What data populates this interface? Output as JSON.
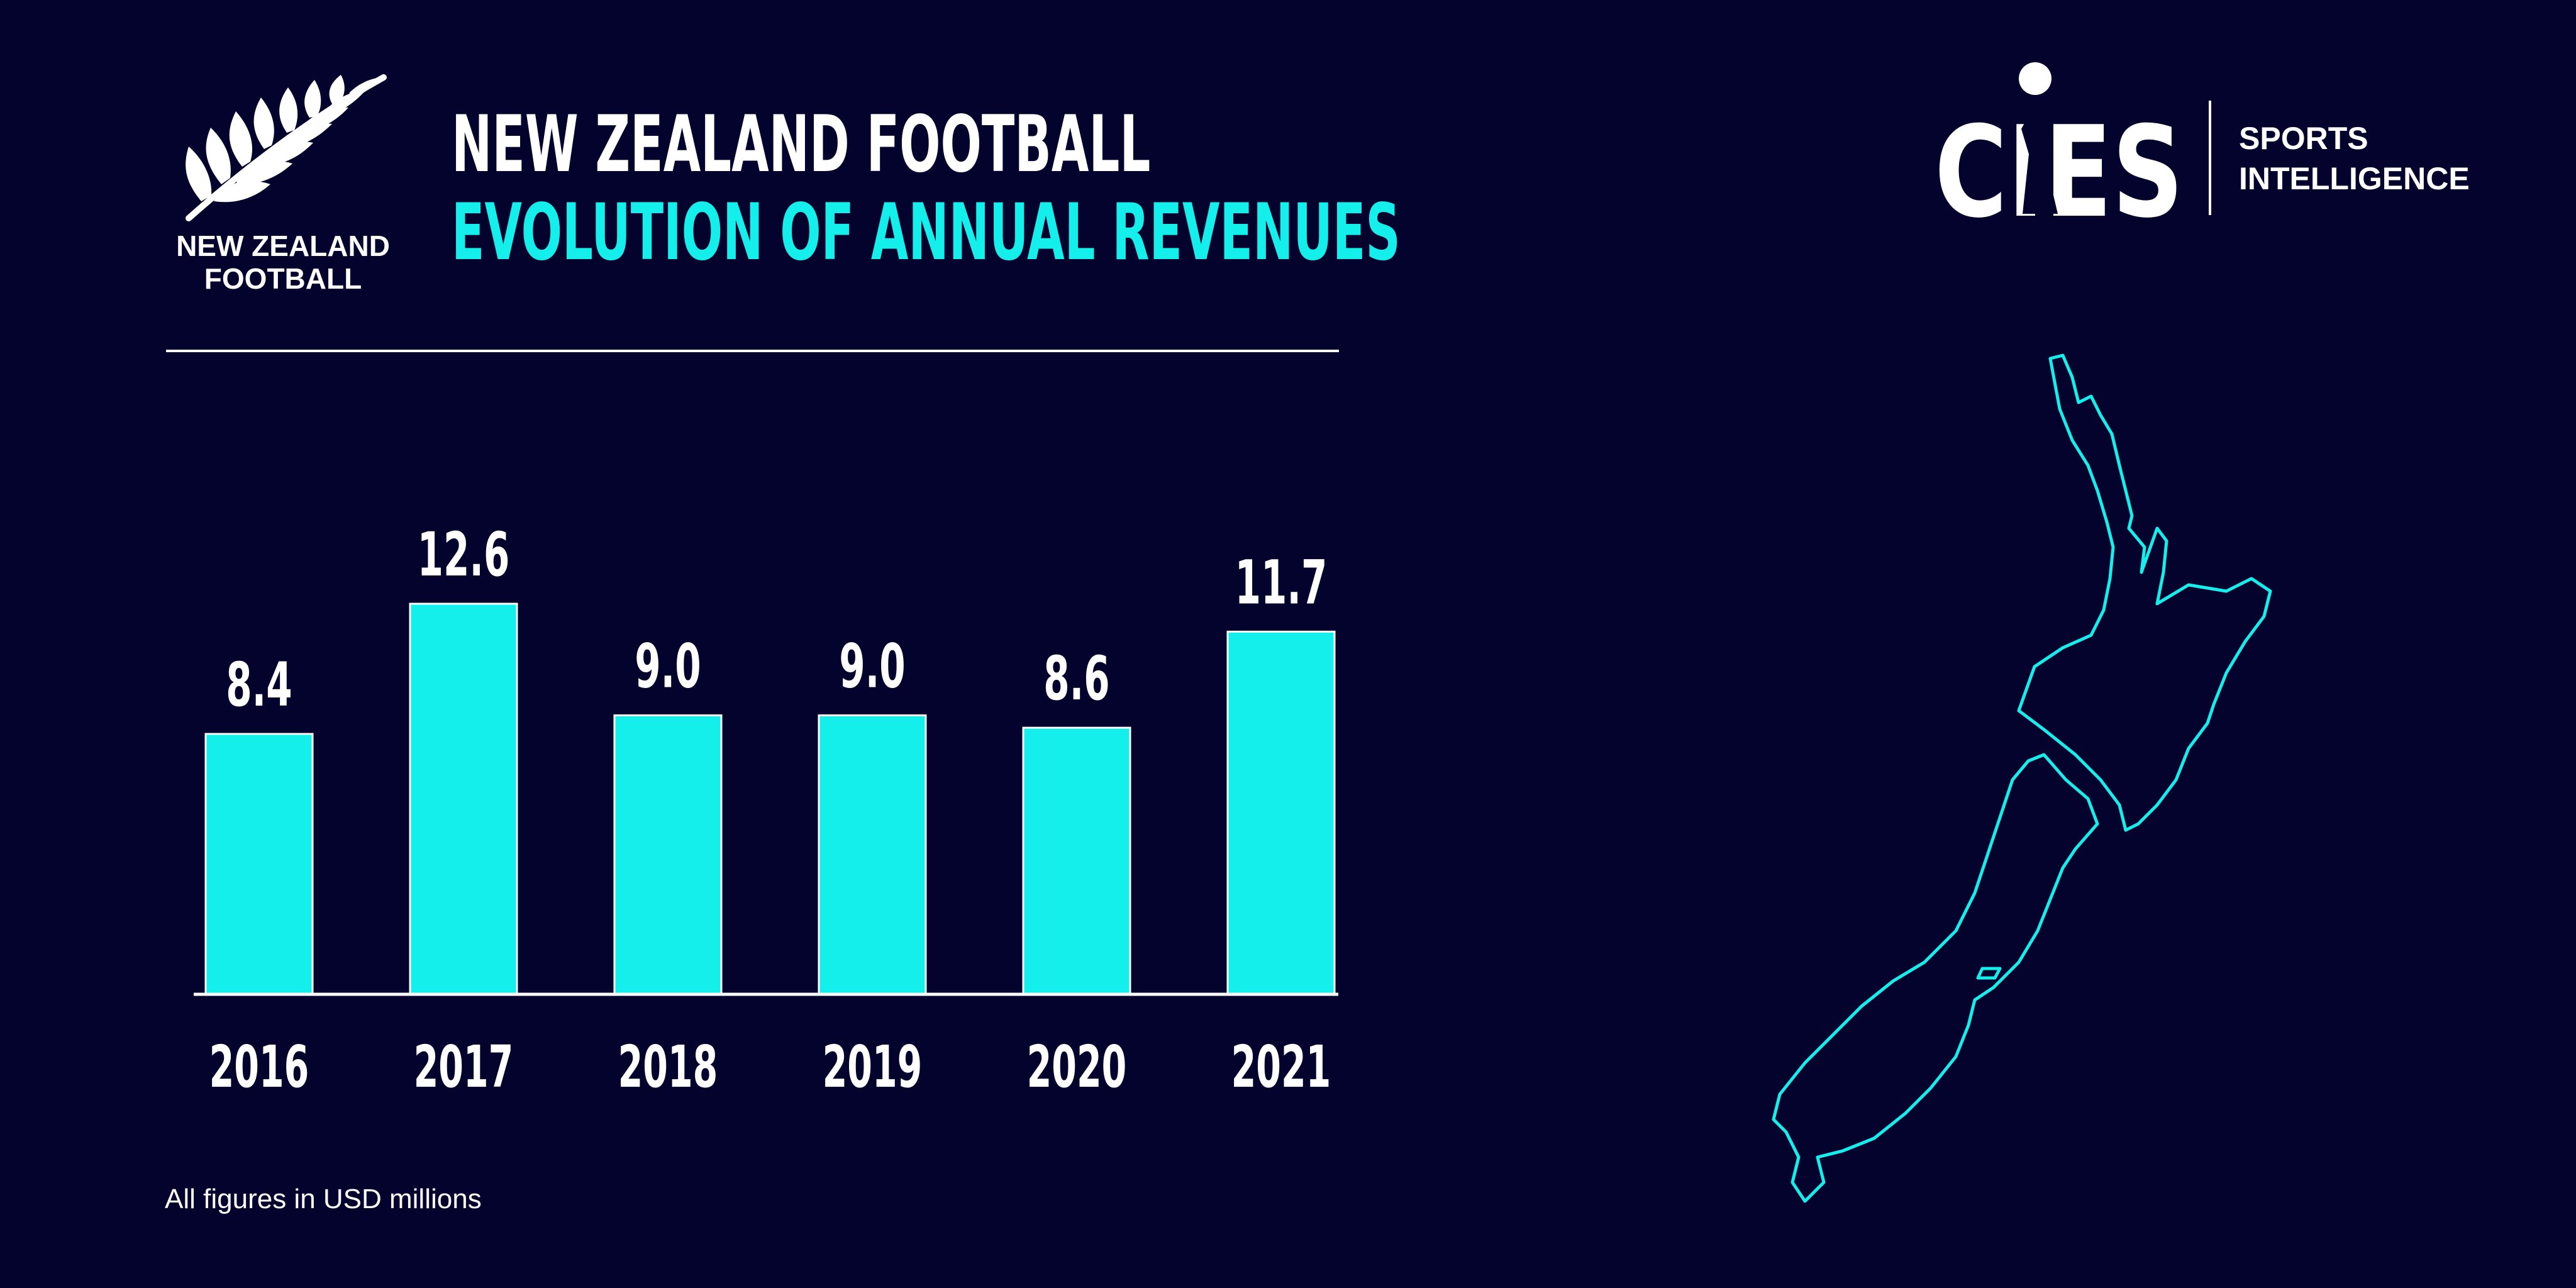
{
  "header": {
    "org_logo_text": [
      "NEW ZEALAND",
      "FOOTBALL"
    ],
    "title_line1": "NEW ZEALAND FOOTBALL",
    "title_line2": "EVOLUTION OF ANNUAL REVENUES"
  },
  "brand": {
    "logo_text": "CIES",
    "tagline": [
      "SPORTS",
      "INTELLIGENCE"
    ]
  },
  "chart_data": {
    "type": "bar",
    "categories": [
      "2016",
      "2017",
      "2018",
      "2019",
      "2020",
      "2021"
    ],
    "values": [
      8.4,
      12.6,
      9.0,
      9.0,
      8.6,
      11.7
    ],
    "value_labels": [
      "8.4",
      "12.6",
      "9.0",
      "9.0",
      "8.6",
      "11.7"
    ],
    "title": "EVOLUTION OF ANNUAL REVENUES",
    "ylim": [
      0,
      12.6
    ],
    "grid": false,
    "bar_color": "#14efeb"
  },
  "footnote": "All figures in USD millions",
  "colors": {
    "background": "#03032e",
    "accent": "#14efeb",
    "text": "#ffffff"
  }
}
